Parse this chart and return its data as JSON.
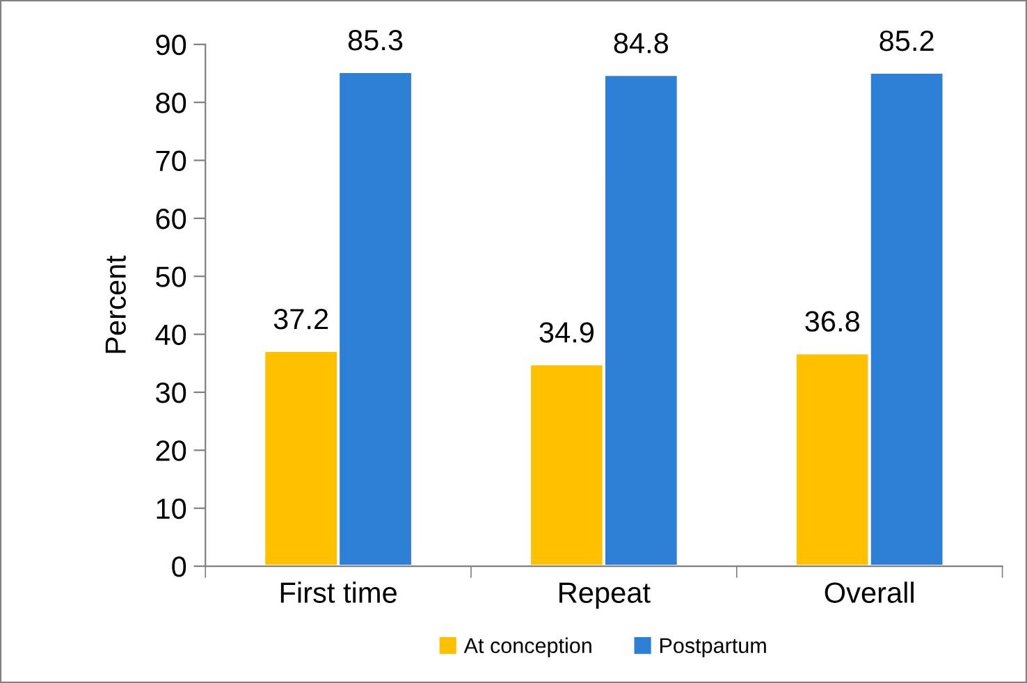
{
  "chart_data": {
    "type": "bar",
    "ylabel": "Percent",
    "categories": [
      "First time",
      "Repeat",
      "Overall"
    ],
    "series": [
      {
        "name": "At conception",
        "color": "#ffc000",
        "values": [
          37.2,
          34.9,
          36.8
        ]
      },
      {
        "name": "Postpartum",
        "color": "#2e7fd6",
        "values": [
          85.3,
          84.8,
          85.2
        ]
      }
    ],
    "ylim": [
      0,
      90
    ],
    "yticks": [
      0,
      10,
      20,
      30,
      40,
      50,
      60,
      70,
      80,
      90
    ],
    "data_labels": true,
    "legend": "bottom",
    "grid": false
  }
}
